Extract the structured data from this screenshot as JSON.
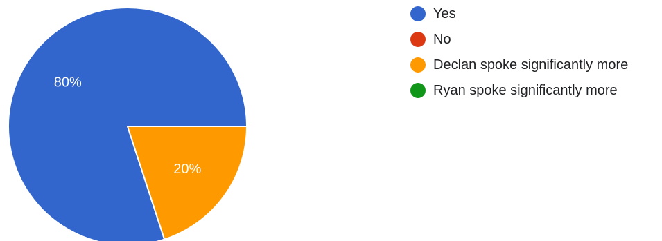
{
  "chart_data": {
    "type": "pie",
    "title": "",
    "legend_position": "right",
    "slices": [
      {
        "label": "Yes",
        "value": 80,
        "display": "80%",
        "color": "#3366cc"
      },
      {
        "label": "No",
        "value": 0,
        "display": "",
        "color": "#dc3912"
      },
      {
        "label": "Declan spoke significantly more",
        "value": 20,
        "display": "20%",
        "color": "#ff9900"
      },
      {
        "label": "Ryan spoke significantly more",
        "value": 0,
        "display": "",
        "color": "#109618"
      }
    ]
  }
}
